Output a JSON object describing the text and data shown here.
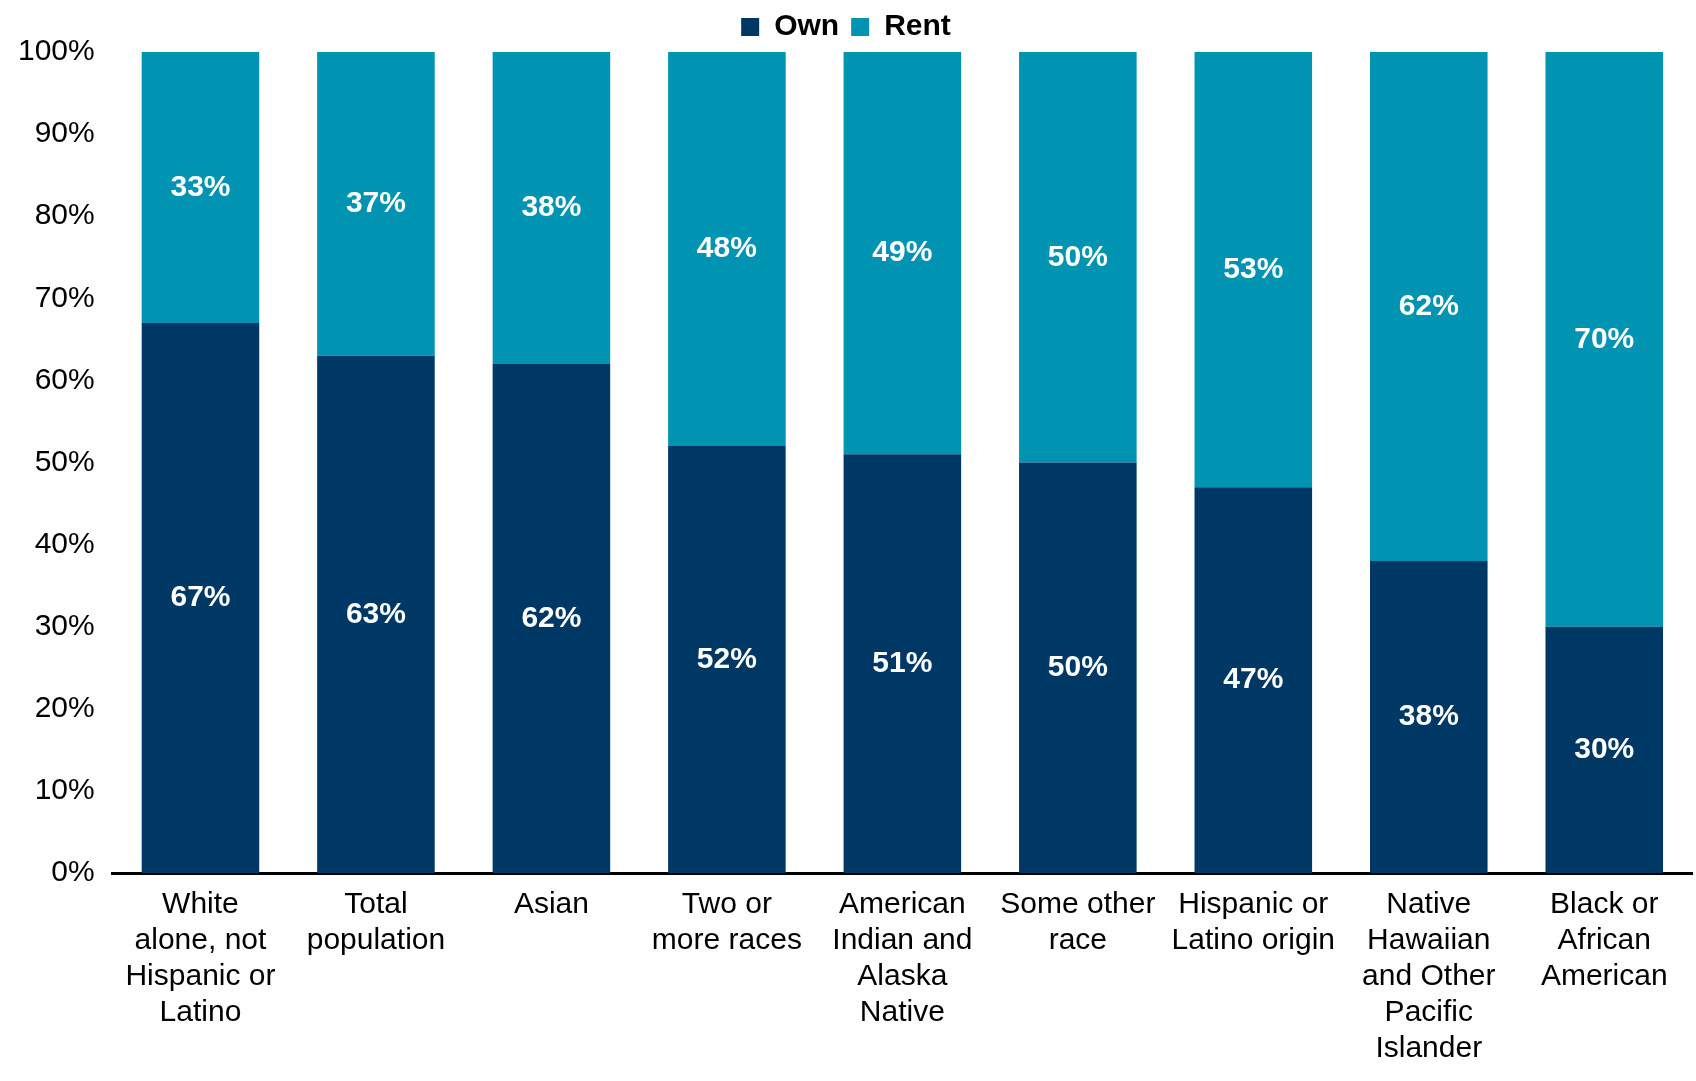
{
  "chart_data": {
    "type": "bar",
    "stacked": true,
    "legend": "top",
    "grid": false,
    "data_labels": true,
    "categories": [
      "White alone, not Hispanic or Latino",
      "Total population",
      "Asian",
      "Two or more races",
      "American Indian and Alaska Native",
      "Some other race",
      "Hispanic or Latino origin",
      "Native Hawaiian and Other Pacific Islander",
      "Black or African American"
    ],
    "series": [
      {
        "name": "Own",
        "color": "#003865",
        "values": [
          67,
          63,
          62,
          52,
          51,
          50,
          47,
          38,
          30
        ],
        "value_labels": [
          "67%",
          "63%",
          "62%",
          "52%",
          "51%",
          "50%",
          "47%",
          "38%",
          "30%"
        ]
      },
      {
        "name": "Rent",
        "color": "#0093b2",
        "values": [
          33,
          37,
          38,
          48,
          49,
          50,
          53,
          62,
          70
        ],
        "value_labels": [
          "33%",
          "37%",
          "38%",
          "48%",
          "49%",
          "50%",
          "53%",
          "62%",
          "70%"
        ]
      }
    ],
    "ylim": [
      0,
      100
    ],
    "yticks": [
      {
        "value": 0,
        "label": "0%"
      },
      {
        "value": 10,
        "label": "10%"
      },
      {
        "value": 20,
        "label": "20%"
      },
      {
        "value": 30,
        "label": "30%"
      },
      {
        "value": 40,
        "label": "40%"
      },
      {
        "value": 50,
        "label": "50%"
      },
      {
        "value": 60,
        "label": "60%"
      },
      {
        "value": 70,
        "label": "70%"
      },
      {
        "value": 80,
        "label": "80%"
      },
      {
        "value": 90,
        "label": "90%"
      },
      {
        "value": 100,
        "label": "100%"
      }
    ]
  }
}
